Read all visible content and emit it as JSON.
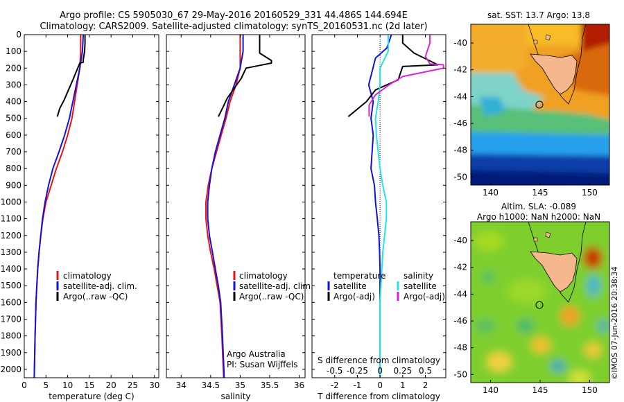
{
  "header": {
    "line1": "Argo profile: CS 5905030_67 29-May-2016 20160529_331 44.486S 144.694E",
    "line2": "Climatology: CARS2009. Satellite-adjusted climatology: synTS_20160531.nc (2d later)"
  },
  "colors": {
    "climatology": "#ee1111",
    "satellite": "#1111dd",
    "argo": "#000000",
    "sat_salinity": "#22e6e6",
    "argo_salinity": "#dd22dd",
    "land": "#f4b88c"
  },
  "legend_profiles": [
    "climatology",
    "satellite-adj. clim.",
    "Argo(..raw -QC)"
  ],
  "legend_diff": {
    "temp_title": "temperature",
    "sal_title": "salinity",
    "temp_items": [
      "satellite",
      "Argo(-adj)"
    ],
    "sal_items": [
      "satellite",
      "Argo(-adj)"
    ]
  },
  "credits": {
    "line1": "Argo Australia",
    "line2": "PI: Susan Wijffels"
  },
  "sst": {
    "title": "sat. SST: 13.7 Argo: 13.8"
  },
  "sla": {
    "title1": "Altim. SLA: -0.089",
    "title2": "Argo h1000: NaN h2000: NaN"
  },
  "watermark": "©IMOS 07-Jun-2016 20:38:34",
  "chart_data": [
    {
      "type": "line",
      "name": "temperature",
      "xlabel": "temperature (deg C)",
      "ylabel": "",
      "xlim": [
        0,
        31
      ],
      "ylim": [
        2050,
        0
      ],
      "xticks": [
        0,
        5,
        10,
        15,
        20,
        25,
        30
      ],
      "yticks": [
        0,
        100,
        200,
        300,
        400,
        500,
        600,
        700,
        800,
        900,
        1000,
        1100,
        1200,
        1300,
        1400,
        1500,
        1600,
        1700,
        1800,
        1900,
        2000
      ],
      "series": [
        {
          "name": "climatology",
          "x": [
            13.0,
            13.0,
            12.8,
            12.2,
            11.6,
            11.0,
            10.0,
            8.8,
            7.4,
            6.2,
            5.0,
            4.3,
            3.8,
            3.4,
            3.1,
            2.9,
            2.7,
            2.5,
            2.3
          ],
          "y": [
            0,
            100,
            200,
            300,
            400,
            500,
            600,
            700,
            800,
            900,
            1000,
            1100,
            1200,
            1300,
            1400,
            1500,
            1600,
            1800,
            2050
          ]
        },
        {
          "name": "satellite-adj. clim.",
          "x": [
            13.6,
            13.4,
            12.8,
            12.0,
            11.2,
            10.4,
            9.3,
            8.0,
            6.6,
            5.6,
            4.8,
            4.2,
            3.8,
            3.4,
            3.1,
            2.9,
            2.7,
            2.5,
            2.3
          ],
          "y": [
            0,
            100,
            200,
            300,
            400,
            500,
            600,
            700,
            800,
            900,
            1000,
            1100,
            1200,
            1300,
            1400,
            1500,
            1600,
            1800,
            2050
          ]
        },
        {
          "name": "Argo(..raw -QC)",
          "x": [
            14.0,
            14.0,
            13.9,
            13.6,
            13.6,
            12.8,
            12.0,
            11.2,
            10.2,
            9.2,
            8.2,
            7.6
          ],
          "y": [
            0,
            50,
            100,
            150,
            165,
            170,
            220,
            270,
            330,
            390,
            440,
            490
          ]
        }
      ]
    },
    {
      "type": "line",
      "name": "salinity",
      "xlabel": "salinity",
      "ylabel": "",
      "xlim": [
        33.75,
        36.1
      ],
      "ylim": [
        2050,
        0
      ],
      "xticks": [
        34,
        34.5,
        35,
        35.5,
        36
      ],
      "series": [
        {
          "name": "climatology",
          "x": [
            35.0,
            35.0,
            35.0,
            34.93,
            34.83,
            34.76,
            34.68,
            34.6,
            34.52,
            34.46,
            34.42,
            34.42,
            34.45,
            34.5,
            34.56,
            34.61,
            34.66,
            34.69,
            34.72
          ],
          "y": [
            0,
            100,
            200,
            300,
            400,
            500,
            600,
            700,
            800,
            900,
            1000,
            1100,
            1200,
            1300,
            1400,
            1500,
            1600,
            1800,
            2050
          ]
        },
        {
          "name": "satellite-adj. clim.",
          "x": [
            35.05,
            35.05,
            35.0,
            34.9,
            34.8,
            34.74,
            34.66,
            34.58,
            34.52,
            34.48,
            34.45,
            34.45,
            34.48,
            34.53,
            34.58,
            34.63,
            34.67,
            34.7,
            34.73
          ],
          "y": [
            0,
            100,
            200,
            300,
            400,
            500,
            600,
            700,
            800,
            900,
            1000,
            1100,
            1200,
            1300,
            1400,
            1500,
            1600,
            1800,
            2050
          ]
        },
        {
          "name": "Argo(..raw -QC)",
          "x": [
            35.33,
            35.33,
            35.33,
            35.53,
            35.53,
            35.1,
            35.02,
            34.9,
            34.78,
            34.7,
            34.63
          ],
          "y": [
            0,
            50,
            110,
            155,
            170,
            200,
            260,
            320,
            380,
            440,
            490
          ]
        }
      ]
    },
    {
      "type": "line",
      "name": "difference from climatology",
      "xlabel": "T difference from climatology",
      "x2label": "S difference from climatology",
      "ylabel": "",
      "xlim": [
        -3.0,
        2.9
      ],
      "ylim": [
        2050,
        0
      ],
      "xticks": [
        -2,
        -1,
        0,
        1,
        2
      ],
      "x2ticks": [
        -0.5,
        -0.25,
        0,
        0.25,
        0.5
      ],
      "x2labels": [
        "-0.5",
        "-0.25",
        "0",
        "0.25",
        "0.5"
      ],
      "series": [
        {
          "name": "temperature satellite",
          "x": [
            0.5,
            0.3,
            -0.2,
            -0.5,
            -0.3,
            -0.4,
            -0.3,
            -0.35,
            -0.4,
            -0.25,
            -0.2,
            -0.12,
            -0.05,
            -0.02,
            0.0,
            0.0,
            0.0,
            0.0,
            0.0
          ],
          "y": [
            0,
            80,
            140,
            300,
            400,
            500,
            600,
            700,
            800,
            900,
            1000,
            1100,
            1200,
            1300,
            1400,
            1500,
            1600,
            1800,
            2050
          ]
        },
        {
          "name": "temperature Argo(-adj)",
          "x": [
            1.0,
            1.0,
            1.5,
            2.55,
            1.0,
            0.8,
            -0.2,
            -0.6,
            -1.4
          ],
          "y": [
            0,
            50,
            110,
            180,
            190,
            270,
            330,
            400,
            490
          ]
        },
        {
          "name": "salinity satellite",
          "x": [
            0.09,
            0.09,
            0.0,
            0.0,
            -0.02,
            -0.05,
            -0.04,
            -0.02,
            0.0,
            0.03,
            0.07,
            0.07,
            0.05,
            0.03,
            0.02,
            0.01,
            0.0,
            0.0
          ],
          "y": [
            0,
            100,
            200,
            300,
            400,
            500,
            600,
            700,
            800,
            900,
            1000,
            1100,
            1200,
            1300,
            1400,
            1500,
            1600,
            2050
          ]
        },
        {
          "name": "salinity Argo(-adj)",
          "x": [
            0.55,
            0.55,
            0.5,
            0.55,
            0.7,
            0.7,
            0.25,
            0.1,
            -0.05,
            -0.12,
            -0.12
          ],
          "y": [
            0,
            50,
            130,
            175,
            180,
            200,
            250,
            300,
            360,
            420,
            490
          ]
        }
      ]
    },
    {
      "type": "heatmap",
      "name": "sat. SST map",
      "title": "sat. SST: 13.7 Argo: 13.8",
      "xlim": [
        138,
        152
      ],
      "ylim": [
        -50.6,
        -38.6
      ],
      "xticks": [
        140,
        145,
        150
      ],
      "yticks": [
        -40,
        -42,
        -44,
        -46,
        -48,
        -50
      ],
      "argo_position": {
        "lon": 144.694,
        "lat": -44.486
      }
    },
    {
      "type": "heatmap",
      "name": "altimetry SLA map",
      "title": "Altim. SLA: -0.089",
      "xlim": [
        138,
        152
      ],
      "ylim": [
        -50.6,
        -38.6
      ],
      "xticks": [
        140,
        145,
        150
      ],
      "yticks": [
        -40,
        -42,
        -44,
        -46,
        -48,
        -50
      ],
      "argo_position": {
        "lon": 144.694,
        "lat": -44.486
      }
    }
  ]
}
